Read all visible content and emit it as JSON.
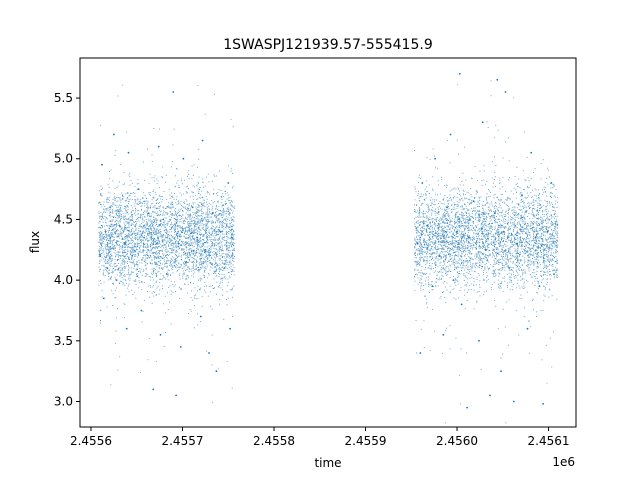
{
  "chart_data": {
    "type": "scatter",
    "title": "1SWASPJ121939.57-555415.9",
    "xlabel": "time",
    "ylabel": "flux",
    "x_offset_label": "1e6",
    "xlim": [
      2455588,
      2456130
    ],
    "ylim": [
      2.79,
      5.83
    ],
    "x_ticks": [
      2455600,
      2455700,
      2455800,
      2455900,
      2456000,
      2456100
    ],
    "x_tick_labels": [
      "2.4556",
      "2.4557",
      "2.4558",
      "2.4559",
      "2.4560",
      "2.4561"
    ],
    "y_ticks": [
      3.0,
      3.5,
      4.0,
      4.5,
      5.0,
      5.5
    ],
    "y_tick_labels": [
      "3.0",
      "3.5",
      "4.0",
      "4.5",
      "5.0",
      "5.5"
    ],
    "grid": false,
    "marker_color": "#1f77b4",
    "series": [
      {
        "points": [
          [
            2455612,
            4.95
          ],
          [
            2455614,
            3.85
          ],
          [
            2455616,
            4.4
          ],
          [
            2455618,
            4.1
          ],
          [
            2455621,
            4.6
          ],
          [
            2455625,
            5.2
          ],
          [
            2455628,
            4.0
          ],
          [
            2455631,
            4.45
          ],
          [
            2455637,
            4.3
          ],
          [
            2455639,
            3.6
          ],
          [
            2455641,
            5.05
          ],
          [
            2455645,
            4.2
          ],
          [
            2455652,
            4.75
          ],
          [
            2455655,
            3.75
          ],
          [
            2455658,
            4.35
          ],
          [
            2455663,
            4.55
          ],
          [
            2455668,
            3.1
          ],
          [
            2455672,
            4.3
          ],
          [
            2455674,
            5.1
          ],
          [
            2455676,
            3.55
          ],
          [
            2455679,
            4.5
          ],
          [
            2455683,
            4.05
          ],
          [
            2455690,
            5.55
          ],
          [
            2455693,
            3.05
          ],
          [
            2455696,
            4.3
          ],
          [
            2455698,
            3.45
          ],
          [
            2455701,
            5.0
          ],
          [
            2455704,
            4.15
          ],
          [
            2455711,
            4.6
          ],
          [
            2455716,
            4.35
          ],
          [
            2455720,
            3.7
          ],
          [
            2455722,
            5.15
          ],
          [
            2455725,
            4.25
          ],
          [
            2455729,
            3.4
          ],
          [
            2455733,
            4.55
          ],
          [
            2455737,
            3.25
          ],
          [
            2455742,
            4.4
          ],
          [
            2455746,
            4.1
          ],
          [
            2455750,
            4.8
          ],
          [
            2455752,
            3.6
          ],
          [
            2455754,
            4.35
          ],
          [
            2455957,
            4.3
          ],
          [
            2455960,
            3.4
          ],
          [
            2455962,
            4.8
          ],
          [
            2455968,
            4.45
          ],
          [
            2455973,
            3.95
          ],
          [
            2455976,
            5.0
          ],
          [
            2455981,
            4.2
          ],
          [
            2455985,
            3.55
          ],
          [
            2455989,
            4.6
          ],
          [
            2455993,
            5.2
          ],
          [
            2455996,
            4.0
          ],
          [
            2456000,
            4.4
          ],
          [
            2456003,
            5.7
          ],
          [
            2456005,
            3.8
          ],
          [
            2456011,
            2.95
          ],
          [
            2456013,
            4.35
          ],
          [
            2456018,
            4.65
          ],
          [
            2456024,
            3.5
          ],
          [
            2456028,
            5.3
          ],
          [
            2456031,
            4.25
          ],
          [
            2456036,
            3.05
          ],
          [
            2456041,
            4.55
          ],
          [
            2456044,
            5.65
          ],
          [
            2456048,
            3.25
          ],
          [
            2456051,
            4.4
          ],
          [
            2456053,
            5.55
          ],
          [
            2456057,
            4.1
          ],
          [
            2456062,
            3.0
          ],
          [
            2456065,
            4.3
          ],
          [
            2456071,
            4.7
          ],
          [
            2456077,
            3.6
          ],
          [
            2456081,
            5.05
          ],
          [
            2456086,
            4.35
          ],
          [
            2456090,
            3.95
          ],
          [
            2456094,
            2.98
          ],
          [
            2456099,
            4.4
          ],
          [
            2456103,
            4.8
          ],
          [
            2456106,
            4.05
          ]
        ]
      }
    ]
  }
}
